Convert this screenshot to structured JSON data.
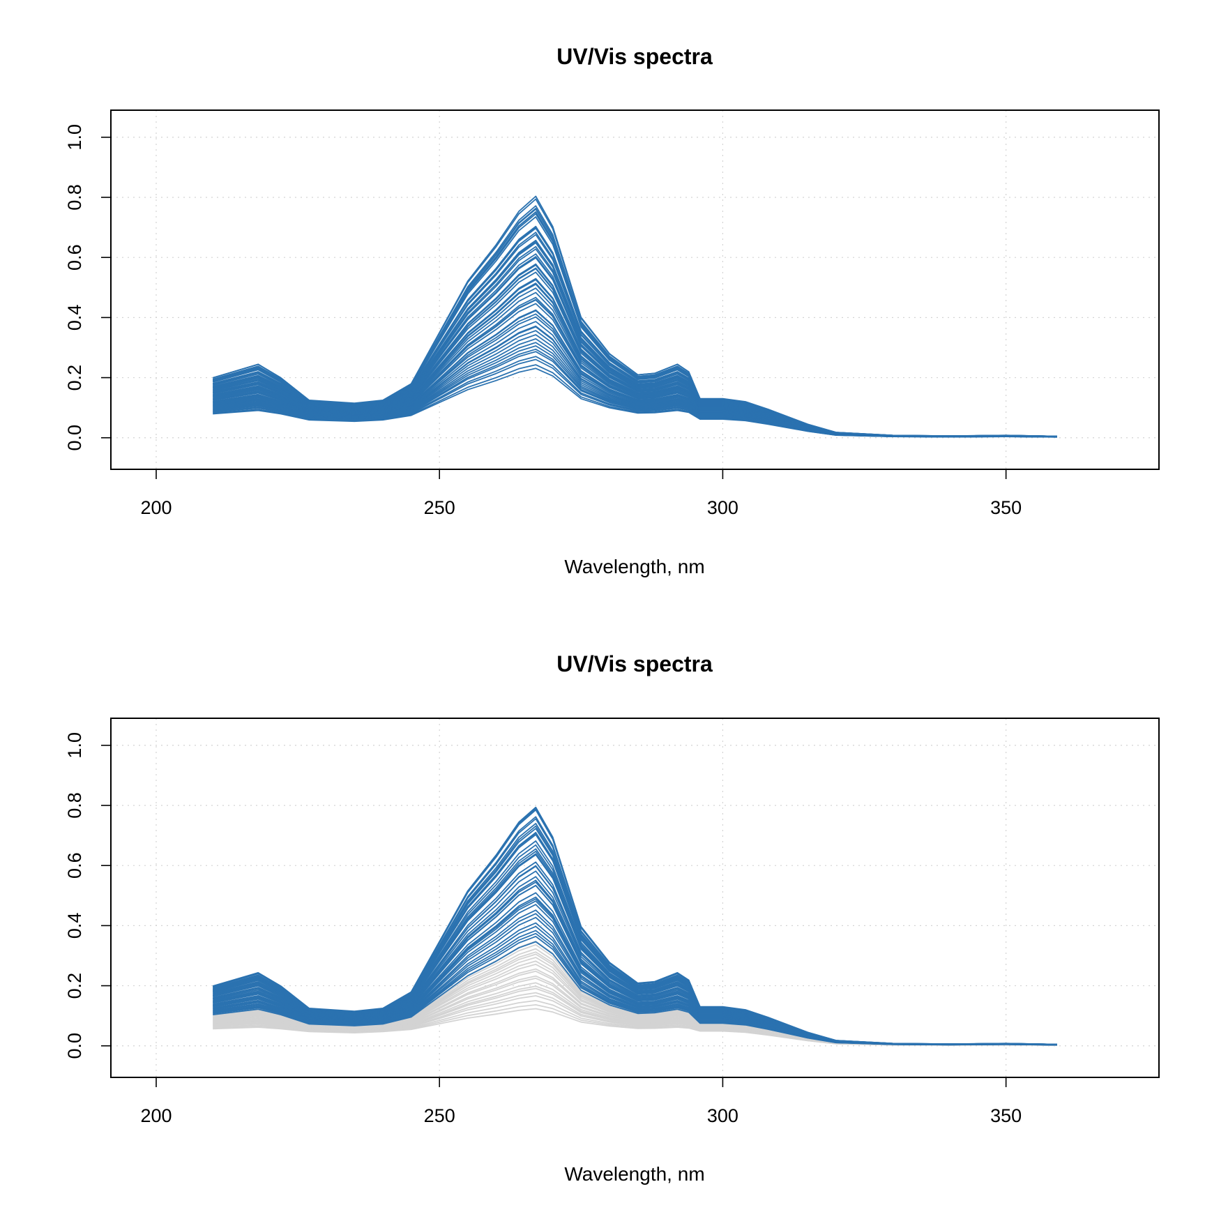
{
  "colors": {
    "primary": "#2b72b0",
    "secondary": "#d3d3d3",
    "axis": "#000000",
    "grid": "#d3d3d3"
  },
  "chart_data": [
    {
      "type": "line",
      "title": "UV/Vis spectra",
      "xlabel": "Wavelength, nm",
      "ylabel": "",
      "xlim": [
        192,
        377
      ],
      "ylim": [
        -0.105,
        1.09
      ],
      "x_ticks": [
        200,
        250,
        300,
        350
      ],
      "y_ticks": [
        0.0,
        0.2,
        0.4,
        0.6,
        0.8,
        1.0
      ],
      "x_tick_labels": [
        "200",
        "250",
        "300",
        "350"
      ],
      "y_tick_labels": [
        "0.0",
        "0.2",
        "0.4",
        "0.6",
        "0.8",
        "1.0"
      ],
      "grid": true,
      "x": [
        210,
        218,
        222,
        227,
        235,
        240,
        245,
        250,
        255,
        260,
        264,
        267,
        270,
        275,
        280,
        285,
        288,
        292,
        294,
        296,
        300,
        304,
        308,
        315,
        320,
        330,
        340,
        350,
        359
      ],
      "series": [
        {
          "color_key": "primary",
          "count": 55,
          "min_scale": 0.25,
          "max_scale": 1.0,
          "values": [
            0.2,
            0.245,
            0.2,
            0.125,
            0.115,
            0.125,
            0.18,
            0.35,
            0.52,
            0.64,
            0.75,
            0.8,
            0.7,
            0.4,
            0.28,
            0.21,
            0.215,
            0.245,
            0.22,
            0.13,
            0.13,
            0.12,
            0.095,
            0.045,
            0.018,
            0.008,
            0.006,
            0.008,
            0.005
          ]
        }
      ]
    },
    {
      "type": "line",
      "title": "UV/Vis spectra",
      "xlabel": "Wavelength, nm",
      "ylabel": "",
      "xlim": [
        192,
        377
      ],
      "ylim": [
        -0.105,
        1.09
      ],
      "x_ticks": [
        200,
        250,
        300,
        350
      ],
      "y_ticks": [
        0.0,
        0.2,
        0.4,
        0.6,
        0.8,
        1.0
      ],
      "x_tick_labels": [
        "200",
        "250",
        "300",
        "350"
      ],
      "y_tick_labels": [
        "0.0",
        "0.2",
        "0.4",
        "0.6",
        "0.8",
        "1.0"
      ],
      "grid": true,
      "x": [
        210,
        218,
        222,
        227,
        235,
        240,
        245,
        250,
        255,
        260,
        264,
        267,
        270,
        275,
        280,
        285,
        288,
        292,
        294,
        296,
        300,
        304,
        308,
        315,
        320,
        330,
        340,
        350,
        359
      ],
      "series": [
        {
          "color_key": "secondary",
          "count": 20,
          "min_scale": 0.11,
          "max_scale": 0.4,
          "values": [
            0.2,
            0.245,
            0.2,
            0.125,
            0.115,
            0.125,
            0.18,
            0.35,
            0.52,
            0.64,
            0.75,
            0.8,
            0.7,
            0.4,
            0.28,
            0.21,
            0.215,
            0.245,
            0.22,
            0.13,
            0.13,
            0.12,
            0.095,
            0.045,
            0.018,
            0.008,
            0.006,
            0.008,
            0.005
          ]
        },
        {
          "color_key": "primary",
          "count": 40,
          "min_scale": 0.4,
          "max_scale": 1.0,
          "values": [
            0.2,
            0.245,
            0.2,
            0.125,
            0.115,
            0.125,
            0.18,
            0.35,
            0.52,
            0.64,
            0.75,
            0.8,
            0.7,
            0.4,
            0.28,
            0.21,
            0.215,
            0.245,
            0.22,
            0.13,
            0.13,
            0.12,
            0.095,
            0.045,
            0.018,
            0.008,
            0.006,
            0.008,
            0.005
          ]
        }
      ]
    }
  ]
}
